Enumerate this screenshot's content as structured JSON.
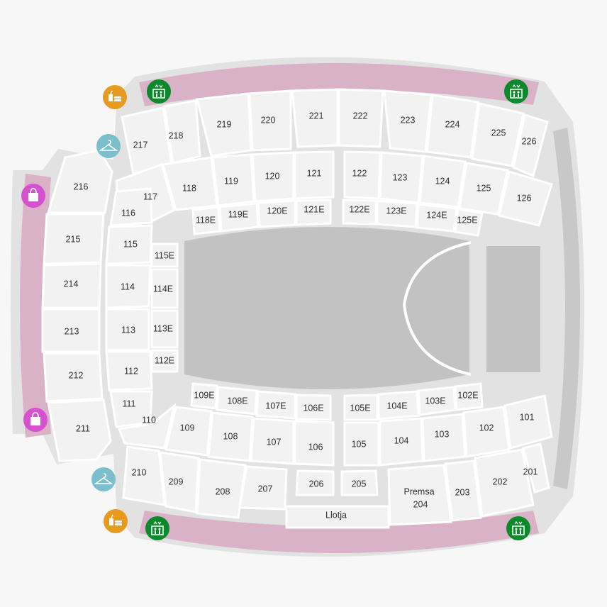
{
  "map": {
    "colors": {
      "background": "#f7f7f7",
      "concourse": "#e2e2e2",
      "section": "#f2f2f2",
      "pink_ring": "#d9b2c8",
      "field": "#c2c2c2",
      "stage": "#c2c2c2",
      "right_ring": "#c8c8c8",
      "elevator": "#0a8a2a",
      "food": "#e69a1f",
      "cloakroom": "#7bbfcc",
      "shop": "#d651d0"
    },
    "icons": [
      {
        "kind": "food-icon"
      },
      {
        "kind": "elevator-icon"
      },
      {
        "kind": "elevator-icon"
      },
      {
        "kind": "cloakroom-icon"
      },
      {
        "kind": "shop-icon"
      },
      {
        "kind": "shop-icon"
      },
      {
        "kind": "cloakroom-icon"
      },
      {
        "kind": "food-icon"
      },
      {
        "kind": "elevator-icon"
      },
      {
        "kind": "elevator-icon"
      }
    ],
    "sections": {
      "s217": "217",
      "s218": "218",
      "s219": "219",
      "s220": "220",
      "s221": "221",
      "s222": "222",
      "s223": "223",
      "s224": "224",
      "s225": "225",
      "s226": "226",
      "s117": "117",
      "s118": "118",
      "s119": "119",
      "s120": "120",
      "s121": "121",
      "s122": "122",
      "s123": "123",
      "s124": "124",
      "s125": "125",
      "s126": "126",
      "s118E": "118E",
      "s119E": "119E",
      "s120E": "120E",
      "s121E": "121E",
      "s122E": "122E",
      "s123E": "123E",
      "s124E": "124E",
      "s125E": "125E",
      "s216": "216",
      "s215": "215",
      "s214": "214",
      "s213": "213",
      "s212": "212",
      "s211": "211",
      "s116": "116",
      "s115": "115",
      "s114": "114",
      "s113": "113",
      "s112": "112",
      "s111": "111",
      "s115E": "115E",
      "s114E": "114E",
      "s113E": "113E",
      "s112E": "112E",
      "s109E": "109E",
      "s108E": "108E",
      "s107E": "107E",
      "s106E": "106E",
      "s105E": "105E",
      "s104E": "104E",
      "s103E": "103E",
      "s102E": "102E",
      "s110": "110",
      "s109": "109",
      "s108": "108",
      "s107": "107",
      "s106": "106",
      "s105": "105",
      "s104": "104",
      "s103": "103",
      "s102": "102",
      "s101": "101",
      "s210": "210",
      "s209": "209",
      "s208": "208",
      "s207": "207",
      "s206": "206",
      "s205": "205",
      "s204_a": "Premsa",
      "s204_b": "204",
      "s203": "203",
      "s202": "202",
      "s201": "201",
      "llotja": "Llotja"
    }
  }
}
